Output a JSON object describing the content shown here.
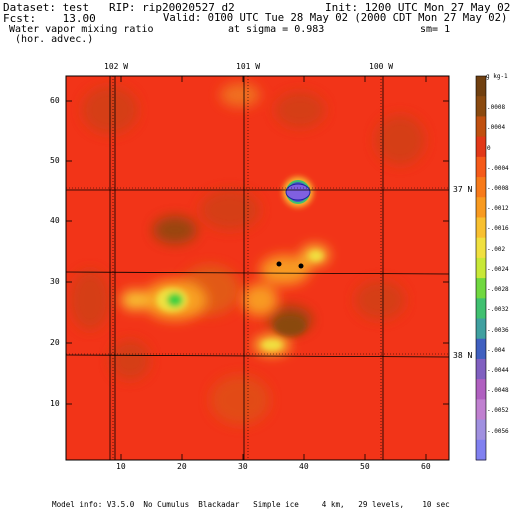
{
  "header": {
    "dataset_line": "Dataset: test   RIP: rip20020527_d2",
    "init_line": "Init: 1200 UTC Mon 27 May 02",
    "fcst_line": "Fcst:    13.00",
    "valid_line": "Valid: 0100 UTC Tue 28 May 02 (2000 CDT Mon 27 May 02)",
    "field_line1": " Water vapor mixing ratio",
    "field_line2": "  (hor. advec.)",
    "sigma_text": "at sigma = 0.983",
    "sm_text": "sm= 1"
  },
  "footer": {
    "model_info": "Model info: V3.5.0  No Cumulus  Blackadar   Simple ice     4 km,   29 levels,    10 sec"
  },
  "map": {
    "lon_labels": [
      "102 W",
      "101 W",
      "100 W"
    ],
    "lat_labels": [
      "37 N",
      "38 N"
    ],
    "y_ticks": [
      "60",
      "50",
      "40",
      "30",
      "20",
      "10"
    ],
    "x_ticks": [
      "10",
      "20",
      "30",
      "40",
      "50",
      "60"
    ],
    "colors": {
      "background_field": "#f23418",
      "dark_patch": "#8a4a10",
      "yellow": "#f0e040",
      "green": "#40d040",
      "purple": "#8060e0",
      "border": "#000000"
    }
  },
  "colorbar": {
    "unit": "g kg-1",
    "labels": [
      ".0008",
      ".0004",
      "0",
      "-.0004",
      "-.0008",
      "-.0012",
      "-.0016",
      "-.002",
      "-.0024",
      "-.0028",
      "-.0032",
      "-.0036",
      "-.004",
      "-.0044",
      "-.0048",
      "-.0052",
      "-.0056"
    ],
    "colors": [
      "#704010",
      "#8a4a10",
      "#c05010",
      "#e23818",
      "#f55a1a",
      "#f77a1a",
      "#f89a20",
      "#f8c030",
      "#f0e040",
      "#c8e838",
      "#70d840",
      "#40c070",
      "#40a0a0",
      "#4060c0",
      "#8060c0",
      "#b060c0",
      "#c080d0",
      "#a090e0",
      "#8080f0"
    ]
  }
}
